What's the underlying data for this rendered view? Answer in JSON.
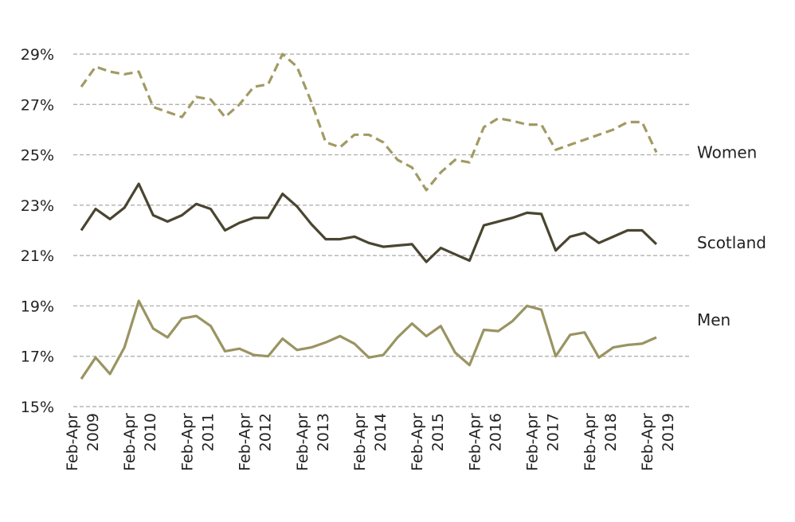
{
  "chart_data": {
    "type": "line",
    "title": "",
    "xlabel": "",
    "ylabel": "",
    "ylim": [
      15,
      29
    ],
    "y_ticks": [
      15,
      17,
      19,
      21,
      23,
      25,
      27,
      29
    ],
    "y_tick_labels": [
      "15%",
      "17%",
      "19%",
      "21%",
      "23%",
      "25%",
      "27%",
      "29%"
    ],
    "grid": true,
    "x_tick_labels": [
      {
        "line1": "Feb-Apr",
        "line2": "2009"
      },
      {
        "line1": "Feb-Apr",
        "line2": "2010"
      },
      {
        "line1": "Feb-Apr",
        "line2": "2011"
      },
      {
        "line1": "Feb-Apr",
        "line2": "2012"
      },
      {
        "line1": "Feb-Apr",
        "line2": "2013"
      },
      {
        "line1": "Feb-Apr",
        "line2": "2014"
      },
      {
        "line1": "Feb-Apr",
        "line2": "2015"
      },
      {
        "line1": "Feb-Apr",
        "line2": "2016"
      },
      {
        "line1": "Feb-Apr",
        "line2": "2017"
      },
      {
        "line1": "Feb-Apr",
        "line2": "2018"
      },
      {
        "line1": "Feb-Apr",
        "line2": "2019"
      }
    ],
    "points_per_year": 4,
    "series": [
      {
        "name": "Women",
        "color": "#a29a64",
        "style": "dashed",
        "values": [
          27.7,
          28.5,
          28.3,
          28.2,
          28.3,
          26.9,
          26.7,
          26.5,
          27.3,
          27.2,
          26.5,
          27.0,
          27.7,
          27.8,
          29.0,
          28.5,
          27.1,
          25.5,
          25.3,
          25.8,
          25.8,
          25.5,
          24.8,
          24.5,
          23.6,
          24.3,
          24.8,
          24.7,
          26.1,
          26.45,
          26.35,
          26.2,
          26.2,
          25.2,
          25.4,
          25.6,
          25.8,
          26.0,
          26.3,
          26.3,
          25.1
        ]
      },
      {
        "name": "Scotland",
        "color": "#4a4530",
        "style": "solid",
        "values": [
          22.0,
          22.85,
          22.45,
          22.9,
          23.85,
          22.6,
          22.35,
          22.6,
          23.05,
          22.85,
          22.0,
          22.3,
          22.5,
          22.5,
          23.45,
          22.95,
          22.25,
          21.65,
          21.65,
          21.75,
          21.5,
          21.35,
          21.4,
          21.45,
          20.75,
          21.3,
          21.05,
          20.8,
          22.2,
          22.35,
          22.5,
          22.7,
          22.65,
          21.2,
          21.75,
          21.9,
          21.5,
          21.75,
          22.0,
          22.0,
          21.45
        ]
      },
      {
        "name": "Men",
        "color": "#9a9462",
        "style": "solid",
        "values": [
          16.1,
          16.95,
          16.3,
          17.35,
          19.2,
          18.1,
          17.75,
          18.5,
          18.6,
          18.2,
          17.2,
          17.3,
          17.05,
          17.0,
          17.7,
          17.25,
          17.35,
          17.55,
          17.8,
          17.5,
          16.95,
          17.05,
          17.75,
          18.3,
          17.8,
          18.2,
          17.15,
          16.65,
          18.05,
          18.0,
          18.4,
          19.0,
          18.85,
          17.0,
          17.85,
          17.95,
          16.95,
          17.35,
          17.45,
          17.5,
          17.75
        ]
      }
    ]
  }
}
